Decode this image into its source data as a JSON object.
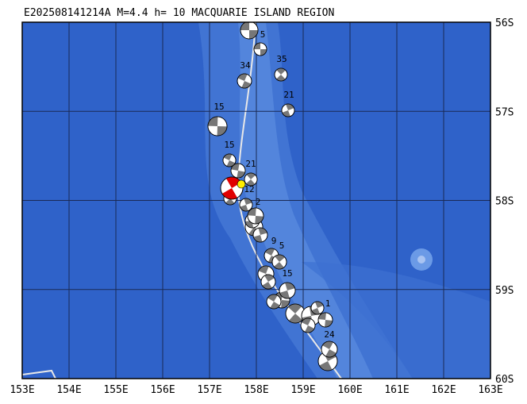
{
  "title": "E202508141214A M=4.4 h= 10 MACQUARIE ISLAND REGION",
  "lon_labels": [
    "153E",
    "154E",
    "155E",
    "156E",
    "157E",
    "158E",
    "159E",
    "160E",
    "161E",
    "162E",
    "163E"
  ],
  "lat_labels": [
    "56S",
    "57S",
    "58S",
    "59S",
    "60S"
  ],
  "event_labels": [
    "5",
    "34",
    "35",
    "21",
    "15",
    "15",
    "21",
    "12",
    "2",
    "9",
    "5",
    "15",
    "1",
    "24"
  ]
}
